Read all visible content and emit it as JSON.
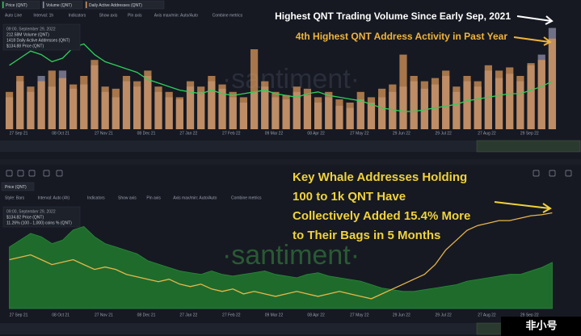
{
  "tabs": [
    "Price (QNT)",
    "Volume (QNT)",
    "Daily Active Addresses (QNT)"
  ],
  "toolbar": [
    "Auto Line",
    "Interval: 1h",
    "Indicators",
    "Show axis",
    "Pin axis",
    "Axis max/min: Auto/Auto",
    "Combine metrics"
  ],
  "toolbar_bottom": [
    "Style: Bars",
    "Interval: Auto (4h)",
    "Indicators",
    "Show axis",
    "Pin axis",
    "Axis max/min: Auto/Auto",
    "Combine metrics"
  ],
  "watermark": "·santiment·",
  "logo": "非小号",
  "chart_data": [
    {
      "type": "bar",
      "legend": [
        "09:00, September 29, 2022",
        "212.58M Volume (QNT)",
        "1418 Daily Active Addresses (QNT)",
        "$134.88 Price (QNT)"
      ],
      "annotations": [
        "Highest QNT Trading Volume Since Early Sep, 2021",
        "4th Highest QNT Address Activity in Past Year"
      ],
      "categories": [
        "27 Sep 21",
        null,
        null,
        null,
        "08 Oct 21",
        null,
        null,
        null,
        "27 Nov 21",
        null,
        null,
        null,
        "08 Dec 21",
        null,
        null,
        null,
        "27 Jan 22",
        null,
        null,
        null,
        "27 Feb 22",
        null,
        null,
        null,
        "09 Mar 22",
        null,
        null,
        null,
        "08 Apr 22",
        null,
        null,
        null,
        "27 May 22",
        null,
        null,
        null,
        "29 Jun 22",
        null,
        null,
        null,
        "29 Jul 22",
        null,
        null,
        null,
        "27 Aug 22",
        null,
        null,
        null,
        "29 Sep 22",
        null,
        null,
        null
      ],
      "series": [
        {
          "name": "Volume (QNT)",
          "color": "#8f8ea8",
          "style": "bar",
          "ylim": [
            0,
            100
          ],
          "values": [
            30,
            45,
            35,
            50,
            40,
            55,
            38,
            42,
            60,
            35,
            30,
            45,
            40,
            50,
            35,
            30,
            28,
            40,
            35,
            45,
            38,
            30,
            25,
            35,
            40,
            30,
            28,
            35,
            32,
            25,
            30,
            22,
            20,
            28,
            25,
            30,
            35,
            40,
            45,
            38,
            42,
            50,
            35,
            45,
            40,
            55,
            48,
            52,
            45,
            60,
            70,
            95
          ]
        },
        {
          "name": "Daily Active Addresses (QNT)",
          "color": "#d8955a",
          "style": "bar",
          "ylim": [
            0,
            100
          ],
          "values": [
            35,
            50,
            40,
            45,
            55,
            48,
            42,
            50,
            65,
            40,
            38,
            50,
            45,
            55,
            40,
            35,
            30,
            45,
            40,
            50,
            42,
            35,
            30,
            75,
            45,
            35,
            32,
            40,
            38,
            30,
            35,
            28,
            25,
            35,
            30,
            38,
            42,
            70,
            50,
            45,
            48,
            55,
            40,
            50,
            45,
            60,
            55,
            58,
            50,
            62,
            65,
            85
          ]
        },
        {
          "name": "Price (QNT)",
          "color": "#2fcf5a",
          "style": "line",
          "ylim": [
            0,
            300
          ],
          "values": [
            180,
            200,
            220,
            210,
            190,
            200,
            230,
            240,
            210,
            190,
            180,
            170,
            160,
            140,
            130,
            120,
            110,
            105,
            100,
            110,
            100,
            95,
            100,
            105,
            110,
            100,
            95,
            90,
            100,
            105,
            95,
            90,
            85,
            80,
            70,
            60,
            55,
            50,
            50,
            55,
            60,
            65,
            70,
            80,
            85,
            90,
            95,
            100,
            100,
            110,
            120,
            135
          ]
        }
      ]
    },
    {
      "type": "area",
      "legend": [
        "09:00, September 29, 2022",
        "$134.82 Price (QNT)",
        "11.26% (100 - 1,000) coins % (QNT)"
      ],
      "annotations": [
        "Key Whale Addresses Holding",
        "100 to 1k QNT Have",
        "Collectively Added 15.4% More",
        "to Their Bags in 5 Months"
      ],
      "tab": "Price (QNT)",
      "categories": [
        "27 Sep 21",
        null,
        null,
        null,
        "08 Oct 21",
        null,
        null,
        null,
        "27 Nov 21",
        null,
        null,
        null,
        "08 Dec 21",
        null,
        null,
        null,
        "27 Jan 22",
        null,
        null,
        null,
        "27 Feb 22",
        null,
        null,
        null,
        "09 Mar 22",
        null,
        null,
        null,
        "08 Apr 22",
        null,
        null,
        null,
        "27 May 22",
        null,
        null,
        null,
        "29 Jun 22",
        null,
        null,
        null,
        "29 Jul 22",
        null,
        null,
        null,
        "27 Aug 22",
        null,
        null,
        null,
        "29 Sep 22",
        null,
        null,
        null
      ],
      "series": [
        {
          "name": "Price (QNT)",
          "color": "#1f6b2c",
          "style": "area",
          "ylim": [
            0,
            300
          ],
          "values": [
            180,
            200,
            220,
            210,
            190,
            200,
            230,
            240,
            210,
            190,
            180,
            170,
            160,
            140,
            130,
            120,
            110,
            105,
            100,
            110,
            100,
            95,
            100,
            105,
            110,
            100,
            95,
            90,
            100,
            105,
            95,
            90,
            85,
            80,
            70,
            60,
            55,
            50,
            50,
            55,
            60,
            65,
            70,
            80,
            85,
            90,
            95,
            100,
            100,
            110,
            120,
            135
          ]
        },
        {
          "name": "(100 - 1,000) coins % (QNT)",
          "color": "#e8b64a",
          "style": "line",
          "ylim": [
            9.3,
            11.4
          ],
          "values": [
            10.3,
            10.35,
            10.4,
            10.3,
            10.2,
            10.25,
            10.3,
            10.2,
            10.1,
            10.15,
            10.1,
            10.0,
            9.95,
            9.9,
            9.85,
            9.9,
            9.8,
            9.75,
            9.8,
            9.7,
            9.65,
            9.7,
            9.6,
            9.65,
            9.6,
            9.55,
            9.6,
            9.65,
            9.6,
            9.55,
            9.6,
            9.65,
            9.6,
            9.55,
            9.5,
            9.6,
            9.7,
            9.8,
            9.9,
            10.0,
            10.2,
            10.5,
            10.7,
            10.9,
            11.0,
            11.05,
            11.1,
            11.1,
            11.15,
            11.2,
            11.22,
            11.26
          ]
        }
      ]
    }
  ]
}
